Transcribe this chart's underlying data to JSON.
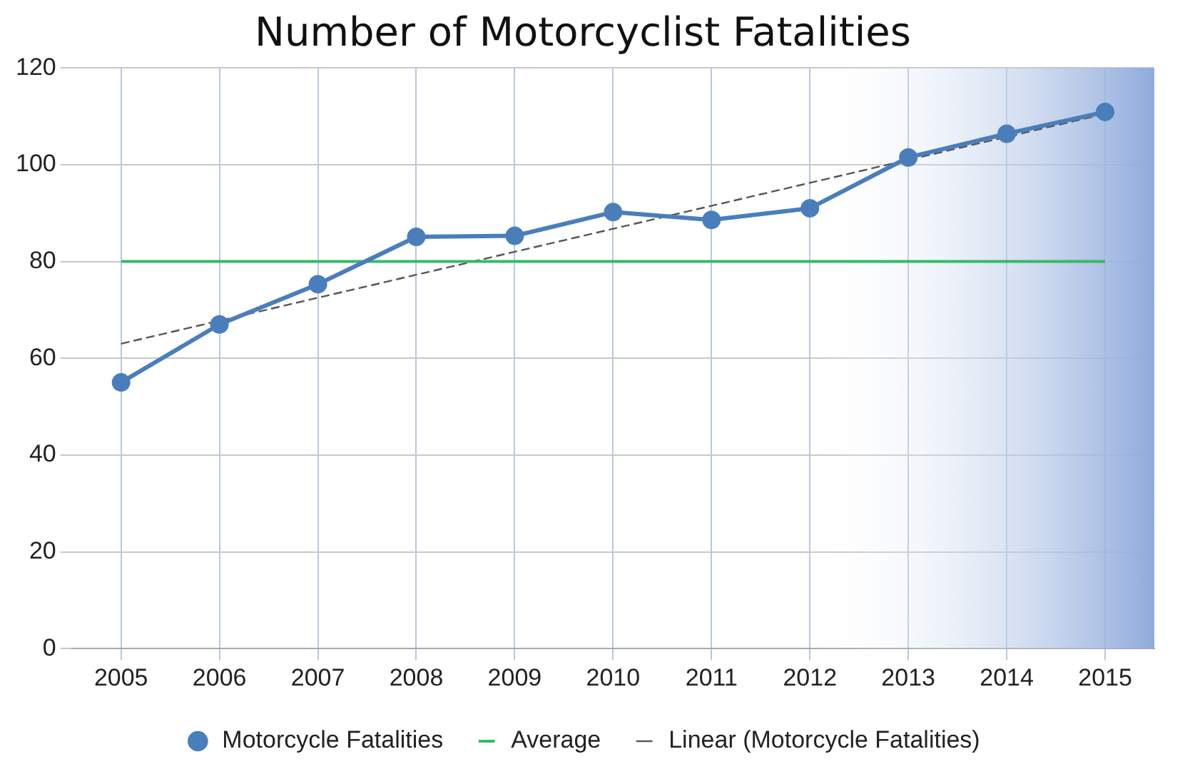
{
  "chart_data": {
    "type": "line",
    "title": "Number of Motorcyclist Fatalities",
    "categories": [
      "2005",
      "2006",
      "2007",
      "2008",
      "2009",
      "2010",
      "2011",
      "2012",
      "2013",
      "2014",
      "2015"
    ],
    "series": [
      {
        "name": "Motorcycle Fatalities",
        "color": "#4a7ebb",
        "marker": "circle",
        "values": [
          55,
          67,
          75.3,
          85.1,
          85.3,
          90.2,
          88.6,
          91,
          101.5,
          106.4,
          110.9
        ]
      },
      {
        "name": "Average",
        "color": "#33bb66",
        "marker": "none",
        "values": [
          80,
          80,
          80,
          80,
          80,
          80,
          80,
          80,
          80,
          80,
          80
        ]
      },
      {
        "name": "Linear (Motorcycle Fatalities)",
        "color": "#555555",
        "marker": "none",
        "line_style": "dashed",
        "values": [
          63,
          null,
          null,
          null,
          null,
          null,
          null,
          null,
          null,
          null,
          110.5
        ]
      }
    ],
    "bands": [
      {
        "axis": "x",
        "from": "2012",
        "to": "2015",
        "color": "#8eaadb"
      }
    ],
    "ylim": [
      0,
      120
    ],
    "yticks": [
      0,
      20,
      40,
      60,
      80,
      100,
      120
    ],
    "grid": true,
    "legend": "bottom"
  }
}
